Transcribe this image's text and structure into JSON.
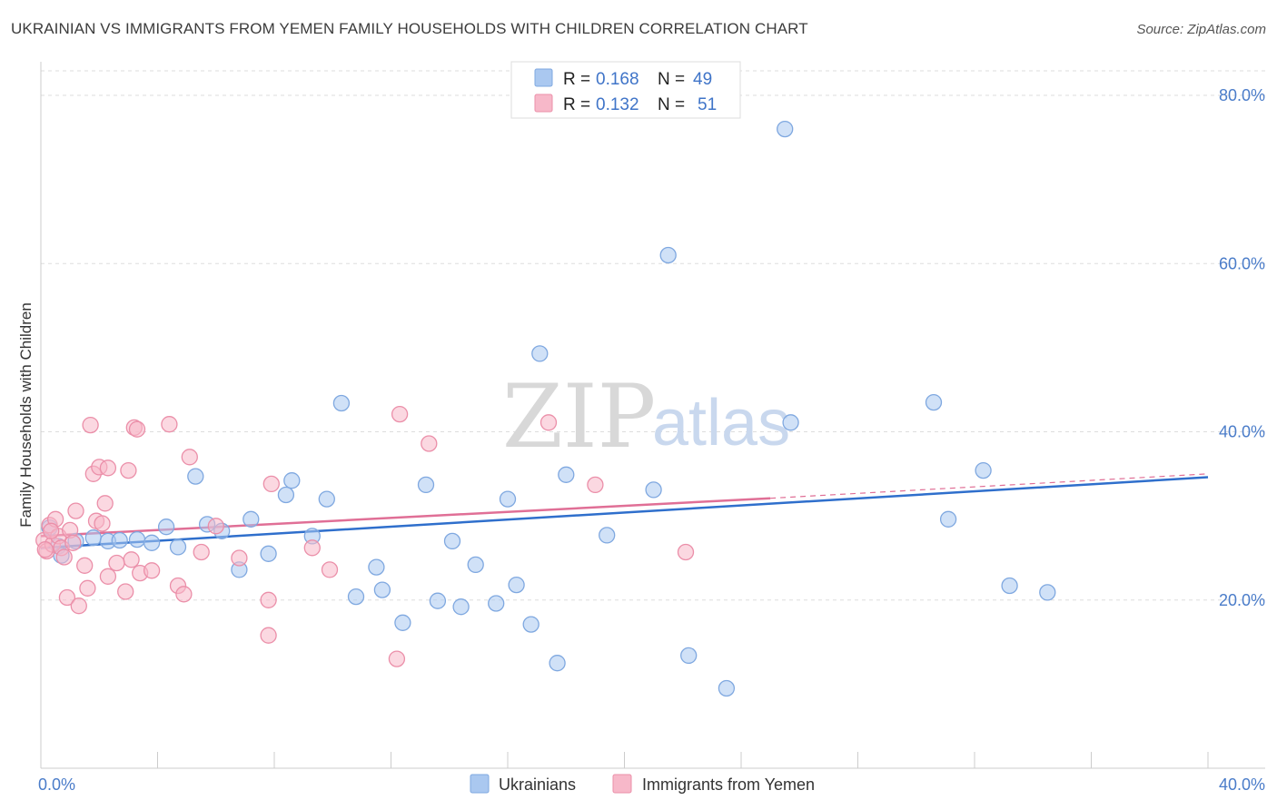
{
  "title": "UKRAINIAN VS IMMIGRANTS FROM YEMEN FAMILY HOUSEHOLDS WITH CHILDREN CORRELATION CHART",
  "source": "Source: ZipAtlas.com",
  "watermark": {
    "zip": "ZIP",
    "atlas": "atlas"
  },
  "legend_top": {
    "r_label": "R =",
    "n_label": "N =",
    "rows": [
      {
        "r": "0.168",
        "n": "49",
        "color": "#aac8f0"
      },
      {
        "r": "0.132",
        "n": "51",
        "color": "#f7b8c9"
      }
    ]
  },
  "colors": {
    "blue_fill": "#aac8f0",
    "blue_stroke": "#7fa8e0",
    "blue_line": "#2f6fcc",
    "pink_fill": "#f7b8c9",
    "pink_stroke": "#eb8fa9",
    "pink_line": "#e06f96",
    "tick_text": "#4a7cc9",
    "grid": "#dddddd"
  },
  "chart_data": {
    "type": "scatter",
    "title": "UKRAINIAN VS IMMIGRANTS FROM YEMEN FAMILY HOUSEHOLDS WITH CHILDREN CORRELATION CHART",
    "xlabel": "",
    "ylabel": "Family Households with Children",
    "xlim": [
      0,
      40
    ],
    "ylim": [
      0,
      84
    ],
    "x_tick_labels": [
      "0.0%",
      "40.0%"
    ],
    "y_ticks": [
      20,
      40,
      60,
      80
    ],
    "y_tick_labels": [
      "20.0%",
      "40.0%",
      "60.0%",
      "80.0%"
    ],
    "grid": true,
    "legend_position": "bottom",
    "series": [
      {
        "name": "Ukrainians",
        "trend": {
          "x": [
            0,
            40
          ],
          "y": [
            26.2,
            34.6
          ],
          "style": "solid"
        },
        "points": [
          [
            0.3,
            28.6
          ],
          [
            0.6,
            26.4
          ],
          [
            0.7,
            25.3
          ],
          [
            1.2,
            27.0
          ],
          [
            1.8,
            27.4
          ],
          [
            2.3,
            27.0
          ],
          [
            2.7,
            27.1
          ],
          [
            3.3,
            27.2
          ],
          [
            3.8,
            26.8
          ],
          [
            4.3,
            28.7
          ],
          [
            4.7,
            26.3
          ],
          [
            5.3,
            34.7
          ],
          [
            5.7,
            29.0
          ],
          [
            6.2,
            28.2
          ],
          [
            6.8,
            23.6
          ],
          [
            7.2,
            29.6
          ],
          [
            7.8,
            25.5
          ],
          [
            8.4,
            32.5
          ],
          [
            8.6,
            34.2
          ],
          [
            9.3,
            27.6
          ],
          [
            9.8,
            32.0
          ],
          [
            10.3,
            43.4
          ],
          [
            10.8,
            20.4
          ],
          [
            11.5,
            23.9
          ],
          [
            11.7,
            21.2
          ],
          [
            12.4,
            17.3
          ],
          [
            13.2,
            33.7
          ],
          [
            13.6,
            19.9
          ],
          [
            14.1,
            27.0
          ],
          [
            14.4,
            19.2
          ],
          [
            14.9,
            24.2
          ],
          [
            15.6,
            19.6
          ],
          [
            16.0,
            32.0
          ],
          [
            16.3,
            21.8
          ],
          [
            16.8,
            17.1
          ],
          [
            17.1,
            49.3
          ],
          [
            17.7,
            12.5
          ],
          [
            18.0,
            34.9
          ],
          [
            19.4,
            27.7
          ],
          [
            21.0,
            33.1
          ],
          [
            21.5,
            61.0
          ],
          [
            22.2,
            13.4
          ],
          [
            23.5,
            9.5
          ],
          [
            25.5,
            76.0
          ],
          [
            25.7,
            41.1
          ],
          [
            30.6,
            43.5
          ],
          [
            31.1,
            29.6
          ],
          [
            32.3,
            35.4
          ],
          [
            33.2,
            21.7
          ],
          [
            34.5,
            20.9
          ]
        ]
      },
      {
        "name": "Immigrants from Yemen",
        "trend": {
          "x": [
            0,
            25
          ],
          "y": [
            27.6,
            32.1
          ],
          "style": "solid",
          "dashed_extension_to": [
            40,
            35.0
          ]
        },
        "points": [
          [
            0.1,
            27.1
          ],
          [
            0.2,
            25.8
          ],
          [
            0.3,
            28.9
          ],
          [
            0.4,
            26.6
          ],
          [
            0.5,
            29.6
          ],
          [
            0.6,
            27.6
          ],
          [
            0.7,
            26.2
          ],
          [
            0.8,
            25.1
          ],
          [
            0.9,
            20.3
          ],
          [
            1.0,
            28.3
          ],
          [
            1.2,
            30.6
          ],
          [
            1.3,
            19.3
          ],
          [
            1.5,
            24.1
          ],
          [
            1.6,
            21.4
          ],
          [
            1.7,
            40.8
          ],
          [
            1.8,
            35.0
          ],
          [
            1.9,
            29.4
          ],
          [
            2.0,
            35.8
          ],
          [
            2.1,
            29.1
          ],
          [
            2.2,
            31.5
          ],
          [
            2.3,
            22.8
          ],
          [
            2.3,
            35.7
          ],
          [
            2.9,
            21.0
          ],
          [
            3.0,
            35.4
          ],
          [
            3.1,
            24.8
          ],
          [
            3.2,
            40.5
          ],
          [
            3.3,
            40.3
          ],
          [
            3.4,
            23.2
          ],
          [
            3.8,
            23.5
          ],
          [
            4.4,
            40.9
          ],
          [
            4.7,
            21.7
          ],
          [
            4.9,
            20.7
          ],
          [
            5.1,
            37.0
          ],
          [
            5.5,
            25.7
          ],
          [
            6.0,
            28.8
          ],
          [
            6.8,
            25.0
          ],
          [
            7.8,
            15.8
          ],
          [
            7.8,
            20.0
          ],
          [
            7.9,
            33.8
          ],
          [
            9.3,
            26.2
          ],
          [
            9.9,
            23.6
          ],
          [
            12.2,
            13.0
          ],
          [
            12.3,
            42.1
          ],
          [
            13.3,
            38.6
          ],
          [
            17.4,
            41.1
          ],
          [
            19.0,
            33.7
          ],
          [
            22.1,
            25.7
          ],
          [
            0.35,
            28.2
          ],
          [
            1.1,
            26.8
          ],
          [
            0.15,
            26.0
          ],
          [
            2.6,
            24.4
          ]
        ]
      }
    ]
  },
  "legend_bottom": [
    {
      "label": "Ukrainians"
    },
    {
      "label": "Immigrants from Yemen"
    }
  ]
}
